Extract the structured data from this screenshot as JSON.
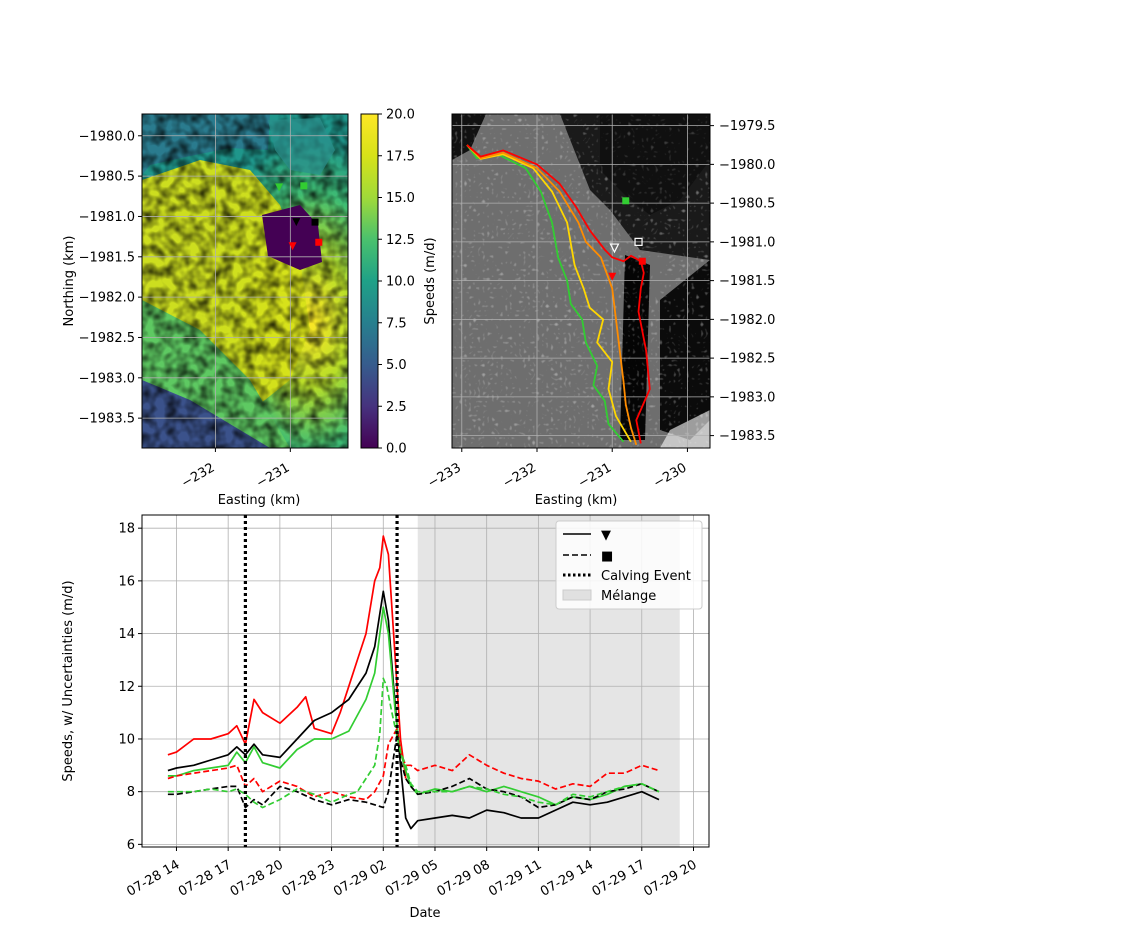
{
  "chart_data": [
    {
      "type": "heatmap",
      "xlabel": "Easting (km)",
      "ylabel": "Northing (km)",
      "xlim": [
        -232.98,
        -230.23
      ],
      "ylim": [
        -1983.87,
        -1979.73
      ],
      "x_ticks": [
        -232,
        -231
      ],
      "x_tick_labels": [
        "−232",
        "−231"
      ],
      "y_ticks": [
        -1980.0,
        -1980.5,
        -1981.0,
        -1981.5,
        -1982.0,
        -1982.5,
        -1983.0,
        -1983.5
      ],
      "y_tick_labels": [
        "−1980.0",
        "−1980.5",
        "−1981.0",
        "−1981.5",
        "−1982.0",
        "−1982.5",
        "−1983.0",
        "−1983.5"
      ],
      "grid": true,
      "colormap": "viridis",
      "colorbar": {
        "label": "Speeds (m/d)",
        "range": [
          0,
          20
        ],
        "ticks": [
          0.0,
          2.5,
          5.0,
          7.5,
          10.0,
          12.5,
          15.0,
          17.5,
          20.0
        ],
        "tick_labels": [
          "0.0",
          "2.5",
          "5.0",
          "7.5",
          "10.0",
          "12.5",
          "15.0",
          "17.5",
          "20.0"
        ]
      },
      "markers": [
        {
          "shape": "triangle",
          "color": "#32cd32",
          "x": -231.15,
          "y": -1980.64
        },
        {
          "shape": "square",
          "color": "#32cd32",
          "x": -230.82,
          "y": -1980.62
        },
        {
          "shape": "triangle",
          "color": "#000000",
          "x": -230.92,
          "y": -1981.07
        },
        {
          "shape": "square",
          "color": "#000000",
          "x": -230.67,
          "y": -1981.07
        },
        {
          "shape": "triangle",
          "color": "#ff0000",
          "x": -230.97,
          "y": -1981.37
        },
        {
          "shape": "square",
          "color": "#ff0000",
          "x": -230.62,
          "y": -1981.32
        }
      ]
    },
    {
      "type": "heatmap",
      "xlabel": "Easting (km)",
      "ylabel": "",
      "xlim": [
        -233.13,
        -229.7
      ],
      "ylim": [
        -1983.66,
        -1979.35
      ],
      "x_ticks": [
        -233,
        -232,
        -231,
        -230
      ],
      "x_tick_labels": [
        "−233",
        "−232",
        "−231",
        "−230"
      ],
      "y_ticks": [
        -1979.5,
        -1980.0,
        -1980.5,
        -1981.0,
        -1981.5,
        -1982.0,
        -1982.5,
        -1983.0,
        -1983.5
      ],
      "y_tick_labels": [
        "−1979.5",
        "−1980.0",
        "−1980.5",
        "−1981.0",
        "−1981.5",
        "−1982.0",
        "−1982.5",
        "−1983.0",
        "−1983.5"
      ],
      "grid": true,
      "colormap": "gray",
      "terminus_lines": [
        {
          "color": "#32cd32",
          "x": [
            -232.93,
            -232.8,
            -232.5,
            -232.15,
            -231.95,
            -231.8,
            -231.72,
            -231.6,
            -231.55,
            -231.4,
            -231.35,
            -231.2,
            -231.25,
            -231.1,
            -231.05,
            -230.85
          ],
          "y": [
            -1979.75,
            -1979.92,
            -1979.88,
            -1980.05,
            -1980.35,
            -1980.75,
            -1981.2,
            -1981.5,
            -1981.8,
            -1982.0,
            -1982.3,
            -1982.6,
            -1982.85,
            -1983.05,
            -1983.35,
            -1983.58
          ]
        },
        {
          "color": "#ffd700",
          "x": [
            -232.93,
            -232.75,
            -232.45,
            -232.05,
            -231.8,
            -231.6,
            -231.5,
            -231.38,
            -231.3,
            -231.12,
            -231.2,
            -231.0,
            -231.05,
            -230.95,
            -230.75
          ],
          "y": [
            -1979.75,
            -1979.93,
            -1979.87,
            -1980.05,
            -1980.35,
            -1980.75,
            -1981.3,
            -1981.6,
            -1981.85,
            -1982.0,
            -1982.3,
            -1982.55,
            -1982.9,
            -1983.25,
            -1983.58
          ]
        },
        {
          "color": "#ff8c00",
          "x": [
            -232.93,
            -232.75,
            -232.45,
            -232.0,
            -231.7,
            -231.45,
            -231.35,
            -231.15,
            -231.0,
            -230.95,
            -230.9,
            -230.85,
            -230.82,
            -230.75,
            -230.68
          ],
          "y": [
            -1979.75,
            -1979.92,
            -1979.85,
            -1980.05,
            -1980.35,
            -1980.75,
            -1981.0,
            -1981.2,
            -1981.6,
            -1982.0,
            -1982.4,
            -1982.8,
            -1983.1,
            -1983.4,
            -1983.62
          ]
        },
        {
          "color": "#ff0000",
          "x": [
            -232.93,
            -232.75,
            -232.45,
            -232.0,
            -231.7,
            -231.48,
            -231.3,
            -231.1,
            -231.0,
            -230.85,
            -230.75,
            -230.62,
            -230.58,
            -230.62,
            -230.65,
            -230.55,
            -230.5,
            -230.68,
            -230.62
          ],
          "y": [
            -1979.75,
            -1979.9,
            -1979.82,
            -1980.0,
            -1980.25,
            -1980.55,
            -1980.85,
            -1981.1,
            -1981.2,
            -1981.25,
            -1981.18,
            -1981.25,
            -1981.4,
            -1981.6,
            -1981.9,
            -1982.4,
            -1982.9,
            -1983.3,
            -1983.6
          ]
        }
      ],
      "markers": [
        {
          "shape": "square",
          "color": "#32cd32",
          "x": -230.82,
          "y": -1980.47
        },
        {
          "shape": "triangle-open",
          "color": "#ffffff",
          "x": -230.97,
          "y": -1981.08
        },
        {
          "shape": "square-open",
          "color": "#ffffff",
          "x": -230.65,
          "y": -1981.0
        },
        {
          "shape": "triangle",
          "color": "#ff0000",
          "x": -231.0,
          "y": -1981.45
        },
        {
          "shape": "square",
          "color": "#ff0000",
          "x": -230.6,
          "y": -1981.25
        }
      ]
    },
    {
      "type": "line",
      "xlabel": "Date",
      "ylabel": "Speeds, w/ Uncertainties (m/d)",
      "x_unit": "hours after 07-28 00:00",
      "xlim": [
        12.0,
        44.9
      ],
      "ylim": [
        5.9,
        18.5
      ],
      "x_ticks": [
        14,
        17,
        20,
        23,
        26,
        29,
        32,
        35,
        38,
        41,
        44
      ],
      "x_tick_labels": [
        "07-28 14",
        "07-28 17",
        "07-28 20",
        "07-28 23",
        "07-29 02",
        "07-29 05",
        "07-29 08",
        "07-29 11",
        "07-29 14",
        "07-29 17",
        "07-29 20"
      ],
      "y_ticks": [
        6,
        8,
        10,
        12,
        14,
        16,
        18
      ],
      "y_tick_labels": [
        "6",
        "8",
        "10",
        "12",
        "14",
        "16",
        "18"
      ],
      "grid": true,
      "legend": {
        "placement": "top-right",
        "entries": [
          {
            "label": "▼",
            "style": "solid"
          },
          {
            "label": "■",
            "style": "dashed"
          },
          {
            "label": "Calving Event",
            "style": "dotted"
          },
          {
            "label": "Mélange",
            "style": "patch"
          }
        ]
      },
      "calving_events": [
        18.0,
        26.8
      ],
      "melange_span": [
        28.0,
        43.2
      ],
      "series": [
        {
          "color": "#ff0000",
          "style": "solid",
          "x": [
            13.5,
            14.0,
            15.0,
            16.0,
            17.0,
            17.5,
            18.0,
            18.5,
            19.0,
            20.0,
            21.0,
            21.5,
            22.0,
            23.0,
            23.5,
            24.0,
            24.5,
            25.0,
            25.5,
            25.8,
            26.0,
            26.3,
            26.6,
            27.0,
            27.3
          ],
          "y": [
            9.4,
            9.5,
            10.0,
            10.0,
            10.2,
            10.5,
            9.8,
            11.5,
            11.0,
            10.6,
            11.2,
            11.6,
            10.4,
            10.2,
            11.0,
            12.0,
            13.0,
            14.0,
            16.0,
            16.5,
            17.7,
            17.0,
            14.0,
            10.0,
            8.5
          ]
        },
        {
          "color": "#000000",
          "style": "solid",
          "x": [
            13.5,
            14.0,
            15.0,
            16.0,
            17.0,
            17.5,
            18.0,
            18.5,
            19.0,
            20.0,
            21.0,
            22.0,
            23.0,
            24.0,
            25.0,
            25.5,
            26.0,
            26.3,
            26.6,
            27.0,
            27.3,
            27.6,
            28.0,
            29.0,
            30.0,
            31.0,
            32.0,
            33.0,
            34.0,
            35.0,
            36.0,
            37.0,
            38.0,
            39.0,
            40.0,
            41.0,
            42.0
          ],
          "y": [
            8.8,
            8.9,
            9.0,
            9.2,
            9.4,
            9.7,
            9.4,
            9.8,
            9.4,
            9.3,
            10.0,
            10.7,
            11.0,
            11.5,
            12.5,
            13.5,
            15.6,
            14.5,
            12.0,
            9.0,
            7.0,
            6.6,
            6.9,
            7.0,
            7.1,
            7.0,
            7.3,
            7.2,
            7.0,
            7.0,
            7.3,
            7.6,
            7.5,
            7.6,
            7.8,
            8.0,
            7.7
          ]
        },
        {
          "color": "#32cd32",
          "style": "solid",
          "x": [
            13.5,
            14.0,
            15.0,
            16.0,
            17.0,
            17.5,
            18.0,
            18.5,
            19.0,
            20.0,
            21.0,
            22.0,
            23.0,
            24.0,
            25.0,
            25.5,
            26.0,
            26.3,
            26.7,
            27.0,
            27.3,
            27.6,
            28.0,
            29.0,
            30.0,
            31.0,
            32.0,
            33.0,
            34.0,
            35.0,
            36.0,
            37.0,
            38.0,
            39.0,
            40.0,
            41.0,
            42.0
          ],
          "y": [
            8.6,
            8.6,
            8.8,
            8.9,
            9.0,
            9.5,
            9.1,
            9.7,
            9.1,
            8.9,
            9.6,
            10.0,
            10.0,
            10.3,
            11.5,
            12.5,
            15.0,
            14.0,
            11.0,
            9.5,
            8.8,
            8.2,
            7.9,
            8.1,
            8.0,
            8.2,
            8.0,
            8.2,
            8.0,
            7.8,
            7.5,
            7.8,
            7.7,
            7.9,
            8.2,
            8.3,
            8.0
          ]
        },
        {
          "color": "#ff0000",
          "style": "dashed",
          "x": [
            13.5,
            14.0,
            15.0,
            16.0,
            17.0,
            17.5,
            18.0,
            18.5,
            19.0,
            20.0,
            21.0,
            22.0,
            23.0,
            24.0,
            25.0,
            25.5,
            26.0,
            26.3,
            26.8,
            27.0,
            27.3,
            27.6,
            28.0,
            29.0,
            30.0,
            31.0,
            32.0,
            33.0,
            34.0,
            35.0,
            36.0,
            37.0,
            38.0,
            39.0,
            40.0,
            41.0,
            42.0
          ],
          "y": [
            8.5,
            8.6,
            8.7,
            8.8,
            8.9,
            9.0,
            8.2,
            8.5,
            8.0,
            8.4,
            8.2,
            7.8,
            8.0,
            7.8,
            7.7,
            8.0,
            8.6,
            9.8,
            10.4,
            9.5,
            9.0,
            9.0,
            8.8,
            9.0,
            8.8,
            9.4,
            9.0,
            8.7,
            8.5,
            8.4,
            8.1,
            8.3,
            8.2,
            8.7,
            8.7,
            9.0,
            8.8
          ]
        },
        {
          "color": "#000000",
          "style": "dashed",
          "x": [
            13.5,
            14.0,
            15.0,
            16.0,
            17.0,
            17.5,
            18.0,
            18.5,
            19.0,
            20.0,
            21.0,
            22.0,
            23.0,
            24.0,
            25.0,
            25.5,
            26.0,
            26.3,
            26.8,
            27.0,
            27.3,
            27.6,
            28.0,
            29.0,
            30.0,
            31.0,
            32.0,
            33.0,
            34.0,
            35.0,
            36.0,
            37.0,
            38.0,
            39.0,
            40.0,
            41.0,
            42.0
          ],
          "y": [
            7.9,
            7.9,
            8.0,
            8.1,
            8.2,
            8.2,
            7.4,
            7.7,
            7.5,
            8.2,
            8.0,
            7.7,
            7.5,
            7.7,
            7.6,
            7.5,
            7.4,
            8.0,
            10.2,
            9.2,
            8.5,
            8.2,
            7.9,
            8.0,
            8.2,
            8.5,
            8.1,
            8.0,
            7.8,
            7.4,
            7.5,
            7.8,
            7.7,
            8.0,
            8.1,
            8.3,
            8.0
          ]
        },
        {
          "color": "#32cd32",
          "style": "dashed",
          "x": [
            13.5,
            14.0,
            15.0,
            16.0,
            17.0,
            17.5,
            18.0,
            18.5,
            19.0,
            20.0,
            21.0,
            22.0,
            23.0,
            24.0,
            24.5,
            25.0,
            25.5,
            25.8,
            26.0,
            26.2,
            26.5,
            27.0,
            27.3,
            27.6,
            28.0,
            29.0,
            30.0,
            31.0,
            32.0,
            33.0,
            34.0,
            35.0,
            36.0,
            37.0,
            38.0,
            39.0,
            40.0,
            41.0,
            42.0
          ],
          "y": [
            8.0,
            8.0,
            8.0,
            8.1,
            8.0,
            8.1,
            7.9,
            7.6,
            7.4,
            7.7,
            8.1,
            7.9,
            7.6,
            7.9,
            8.0,
            8.5,
            9.0,
            10.2,
            12.3,
            12.0,
            11.0,
            9.5,
            9.0,
            8.3,
            8.0,
            8.0,
            8.0,
            8.2,
            8.1,
            7.9,
            7.8,
            7.6,
            7.5,
            7.9,
            7.8,
            8.0,
            8.2,
            8.3,
            8.0
          ]
        }
      ]
    }
  ]
}
